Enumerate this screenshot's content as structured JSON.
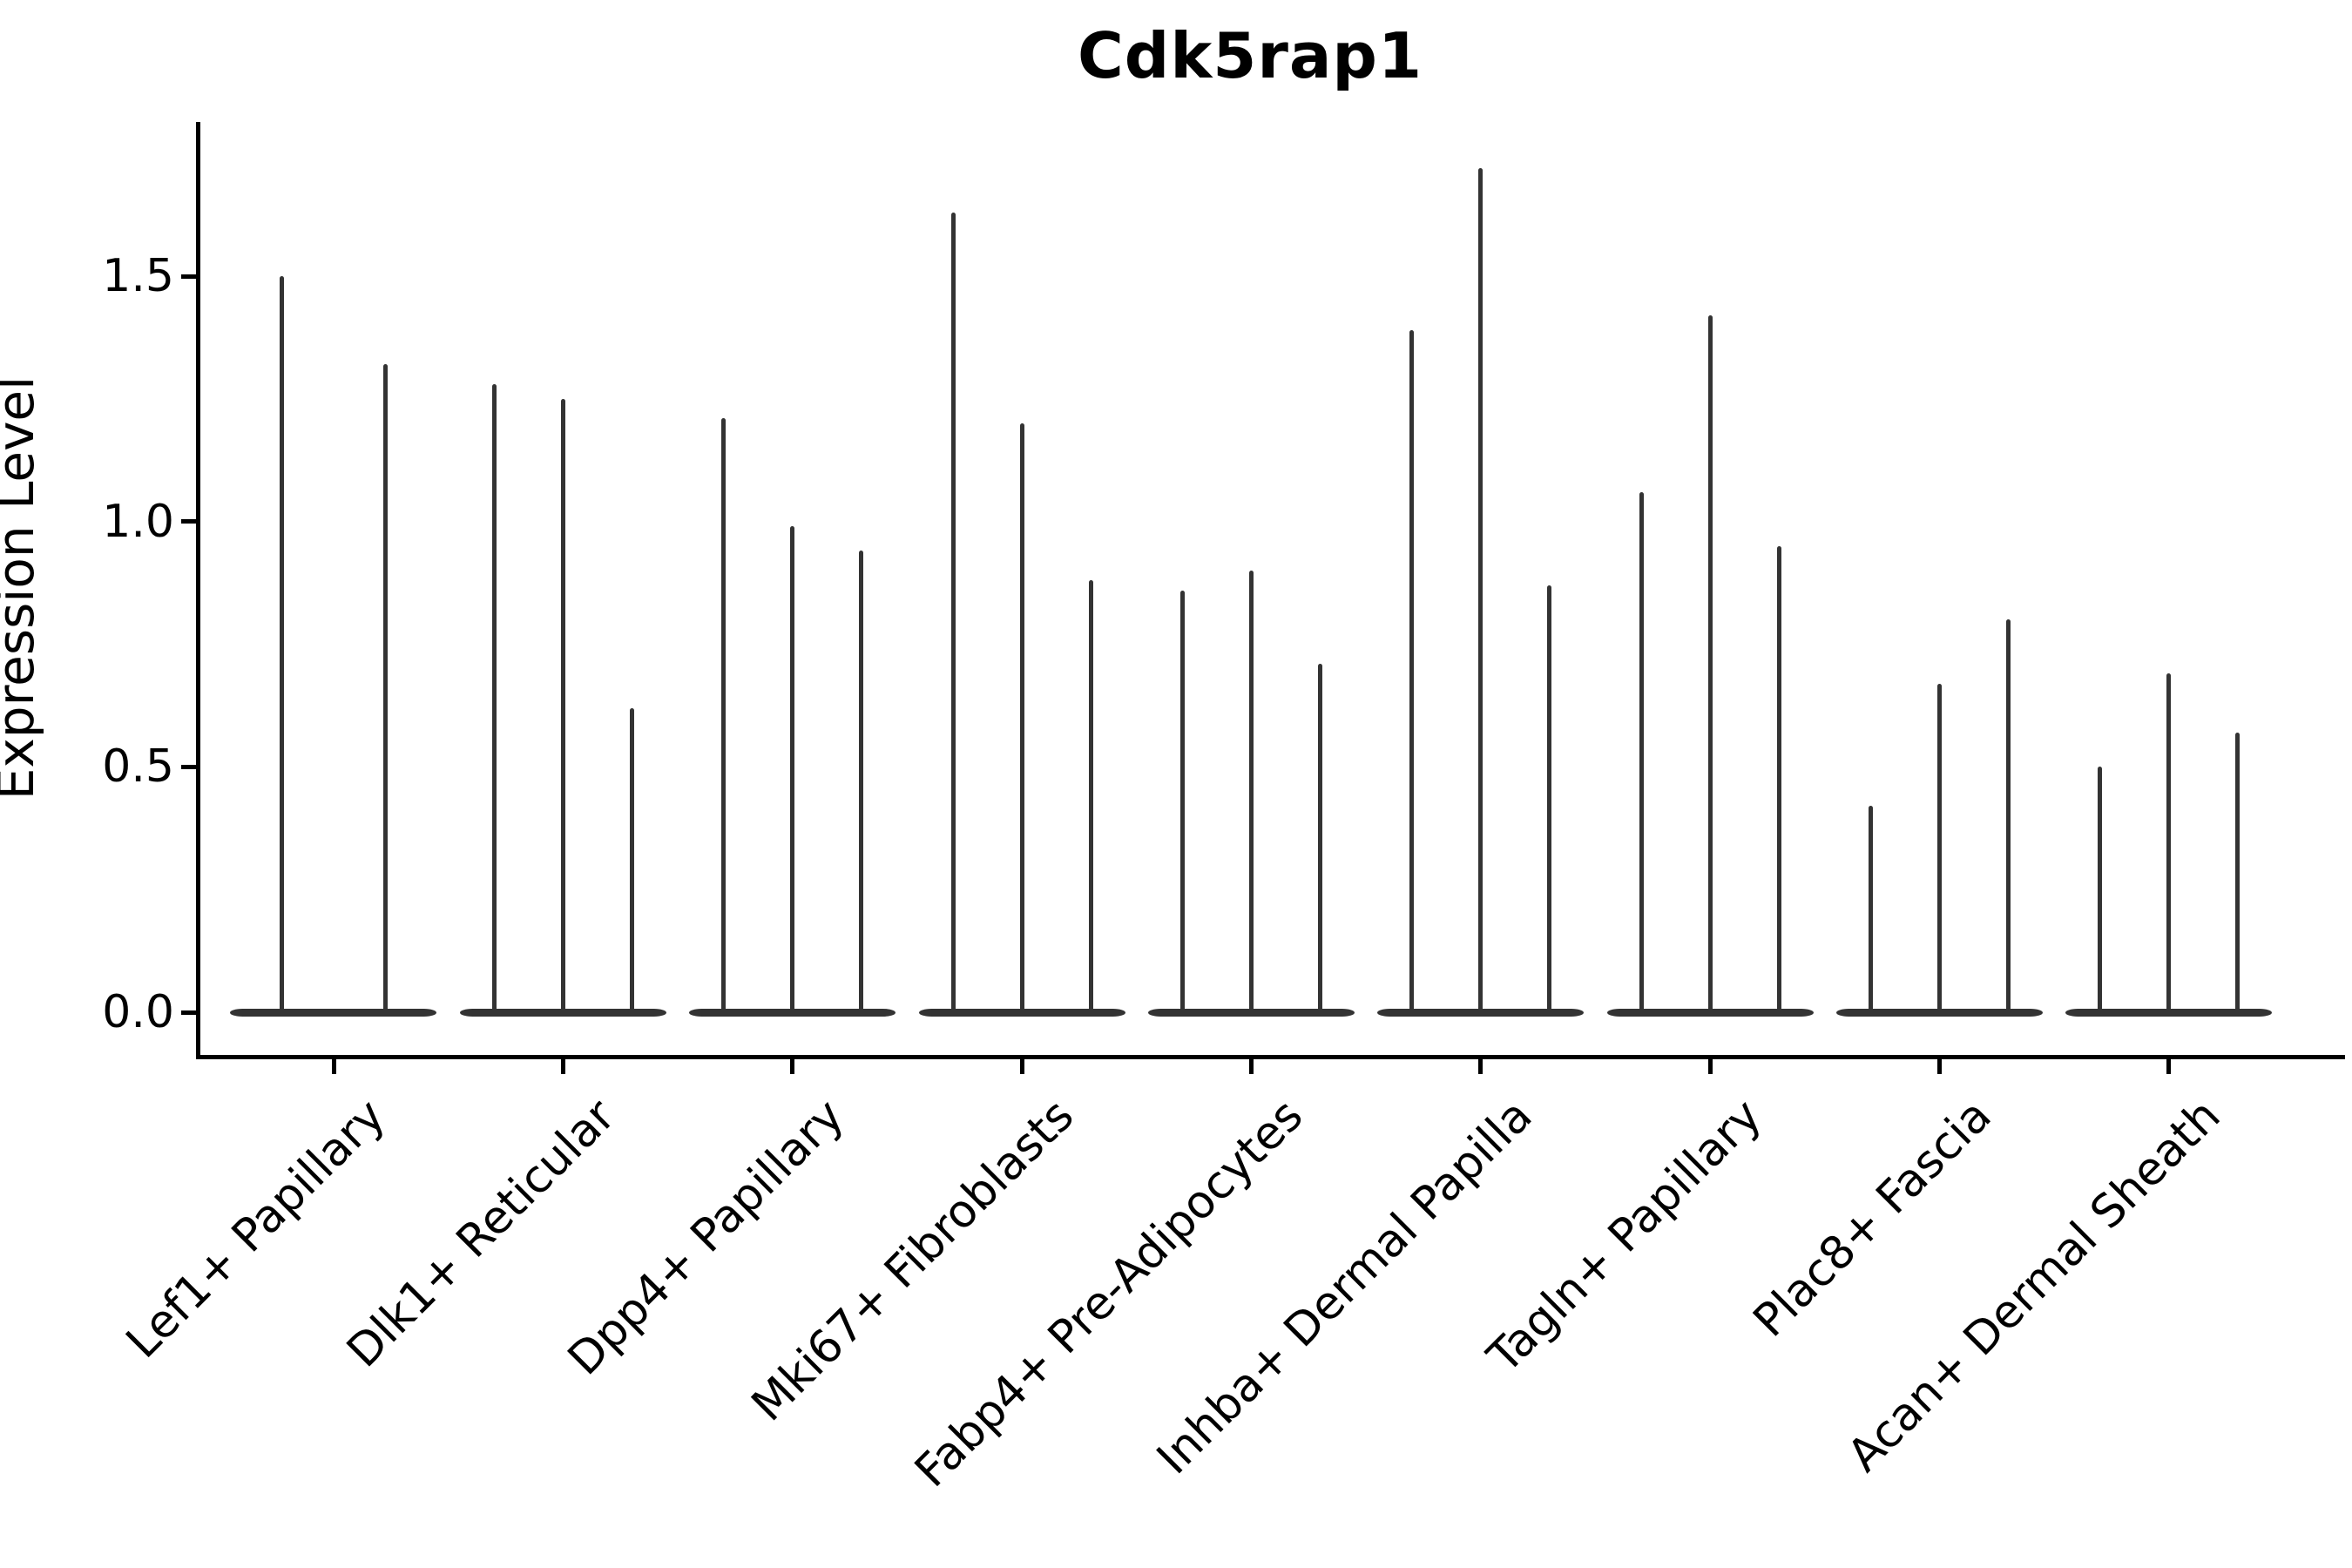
{
  "title": "Cdk5rap1",
  "axes": {
    "ylabel": "Expression Level",
    "ytick_labels": [
      "0.0",
      "0.5",
      "1.0",
      "1.5"
    ]
  },
  "chart_data": {
    "type": "violin",
    "title": "Cdk5rap1",
    "ylabel": "Expression Level",
    "xlabel": "",
    "categories": [
      "Lef1+ Papillary",
      "Dlk1+ Reticular",
      "Dpp4+ Papillary",
      "Mki67+ Fibroblasts",
      "Fabp4+ Pre-Adipocytes",
      "Inhba+ Dermal Papilla",
      "Tagln+ Papillary",
      "Plac8+ Fascia",
      "Acan+ Dermal Sheath"
    ],
    "series": [
      {
        "category": "Lef1+ Papillary",
        "violin_peak_values": [
          1.5,
          1.32
        ]
      },
      {
        "category": "Dlk1+ Reticular",
        "violin_peak_values": [
          1.28,
          1.25,
          0.62
        ]
      },
      {
        "category": "Dpp4+ Papillary",
        "violin_peak_values": [
          1.21,
          0.99,
          0.94
        ]
      },
      {
        "category": "Mki67+ Fibroblasts",
        "violin_peak_values": [
          1.63,
          1.2,
          0.88
        ]
      },
      {
        "category": "Fabp4+ Pre-Adipocytes",
        "violin_peak_values": [
          0.86,
          0.9,
          0.71
        ]
      },
      {
        "category": "Inhba+ Dermal Papilla",
        "violin_peak_values": [
          1.39,
          1.72,
          0.87
        ]
      },
      {
        "category": "Tagln+ Papillary",
        "violin_peak_values": [
          1.06,
          1.42,
          0.95
        ]
      },
      {
        "category": "Plac8+ Fascia",
        "violin_peak_values": [
          0.42,
          0.67,
          0.8
        ]
      },
      {
        "category": "Acan+ Dermal Sheath",
        "violin_peak_values": [
          0.5,
          0.69,
          0.57
        ]
      }
    ],
    "violin_body_note": "all violins are collapsed at 0 with a thin spike up to the peak value",
    "yticks": [
      0.0,
      0.5,
      1.0,
      1.5
    ],
    "ylim": [
      -0.09,
      1.81
    ],
    "grid": false,
    "legend_position": "none",
    "violin_color": "#333333",
    "axis_color": "#000000"
  }
}
